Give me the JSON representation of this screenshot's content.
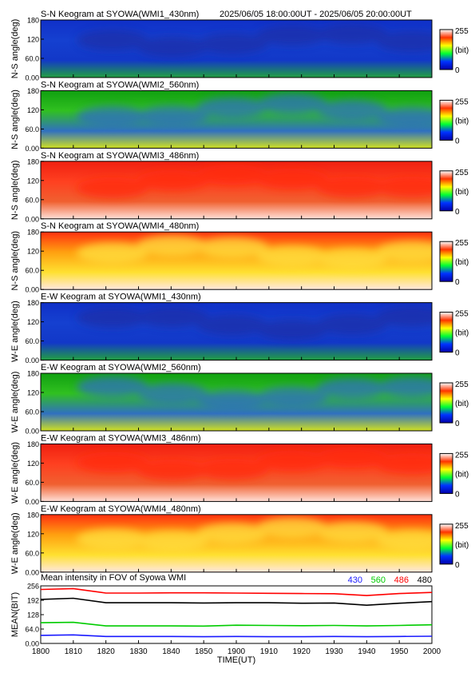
{
  "header": {
    "time_range": "2025/06/05 18:00:00UT - 2025/06/05 20:00:00UT"
  },
  "colorbar": {
    "max_label": "255",
    "unit_label": "(bit)",
    "min_label": "0"
  },
  "keogram_y_ticks": [
    "180",
    "120",
    "60.0",
    "0.00"
  ],
  "panels": [
    {
      "title": "S-N Keogram at SYOWA(WMI1_430nm)",
      "ylabel": "N-S angle(deg)",
      "colormap": "blue"
    },
    {
      "title": "S-N Keogram at SYOWA(WMI2_560nm)",
      "ylabel": "N-S angle(deg)",
      "colormap": "green"
    },
    {
      "title": "S-N Keogram at SYOWA(WMI3_486nm)",
      "ylabel": "N-S angle(deg)",
      "colormap": "red"
    },
    {
      "title": "S-N Keogram at SYOWA(WMI4_480nm)",
      "ylabel": "N-S angle(deg)",
      "colormap": "orange"
    },
    {
      "title": "E-W Keogram at SYOWA(WMI1_430nm)",
      "ylabel": "W-E angle(deg)",
      "colormap": "blue"
    },
    {
      "title": "E-W Keogram at SYOWA(WMI2_560nm)",
      "ylabel": "W-E angle(deg)",
      "colormap": "green"
    },
    {
      "title": "E-W Keogram at SYOWA(WMI3_486nm)",
      "ylabel": "W-E angle(deg)",
      "colormap": "red"
    },
    {
      "title": "E-W Keogram at SYOWA(WMI4_480nm)",
      "ylabel": "W-E angle(deg)",
      "colormap": "orange"
    }
  ],
  "colors": {
    "c430": "#1a1aff",
    "c560": "#00cc00",
    "c486": "#ff0000",
    "c480": "#000000"
  },
  "chart_data": {
    "type": "line",
    "title": "Mean intensity in FOV of Syowa WMI",
    "xlabel": "TIME(UT)",
    "ylabel": "MEAN(BIT)",
    "x_tick_labels": [
      "1800",
      "1810",
      "1820",
      "1830",
      "1840",
      "1850",
      "1900",
      "1910",
      "1920",
      "1930",
      "1940",
      "1950",
      "2000"
    ],
    "y_tick_labels": [
      "256",
      "192",
      "128",
      "64.0",
      "0.00"
    ],
    "ylim": [
      0,
      256
    ],
    "x": [
      0,
      10,
      20,
      30,
      40,
      50,
      60,
      70,
      80,
      90,
      100,
      110,
      120
    ],
    "series": [
      {
        "name": "430",
        "color": "#1a1aff",
        "values": [
          36,
          38,
          31,
          31,
          31,
          30,
          31,
          30,
          30,
          31,
          30,
          31,
          32
        ]
      },
      {
        "name": "560",
        "color": "#00cc00",
        "values": [
          92,
          94,
          78,
          78,
          78,
          77,
          81,
          80,
          79,
          80,
          78,
          80,
          83
        ]
      },
      {
        "name": "486",
        "color": "#ff0000",
        "values": [
          240,
          244,
          224,
          224,
          225,
          225,
          224,
          223,
          222,
          221,
          213,
          222,
          227
        ]
      },
      {
        "name": "480",
        "color": "#000000",
        "values": [
          196,
          201,
          181,
          181,
          181,
          180,
          181,
          181,
          179,
          180,
          170,
          179,
          186
        ]
      }
    ]
  }
}
